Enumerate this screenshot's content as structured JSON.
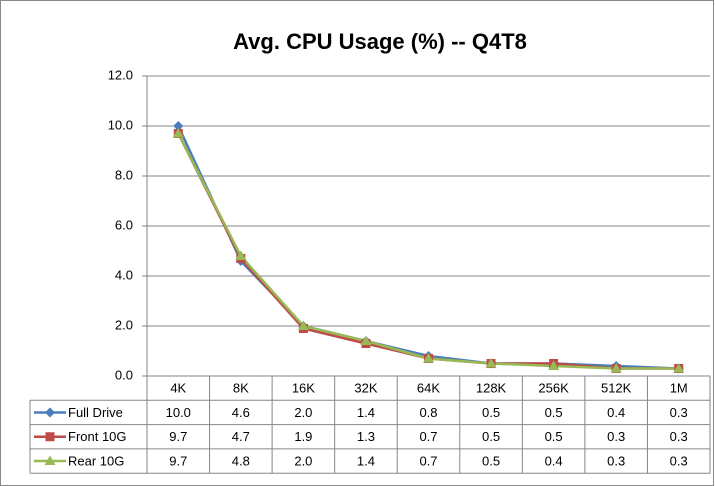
{
  "chart_data": {
    "type": "line",
    "title": "Avg. CPU Usage (%)    -- Q4T8",
    "categories": [
      "4K",
      "8K",
      "16K",
      "32K",
      "64K",
      "128K",
      "256K",
      "512K",
      "1M"
    ],
    "series": [
      {
        "name": "Full Drive",
        "color": "#4a7ebb",
        "marker": "diamond",
        "values": [
          10.0,
          4.6,
          2.0,
          1.4,
          0.8,
          0.5,
          0.5,
          0.4,
          0.3
        ],
        "value_labels": [
          "10.0",
          "4.6",
          "2.0",
          "1.4",
          "0.8",
          "0.5",
          "0.5",
          "0.4",
          "0.3"
        ]
      },
      {
        "name": "Front 10G",
        "color": "#be4b48",
        "marker": "square",
        "values": [
          9.7,
          4.7,
          1.9,
          1.3,
          0.7,
          0.5,
          0.5,
          0.3,
          0.3
        ],
        "value_labels": [
          "9.7",
          "4.7",
          "1.9",
          "1.3",
          "0.7",
          "0.5",
          "0.5",
          "0.3",
          "0.3"
        ]
      },
      {
        "name": "Rear 10G",
        "color": "#98b954",
        "marker": "triangle",
        "values": [
          9.7,
          4.8,
          2.0,
          1.4,
          0.7,
          0.5,
          0.4,
          0.3,
          0.3
        ],
        "value_labels": [
          "9.7",
          "4.8",
          "2.0",
          "1.4",
          "0.7",
          "0.5",
          "0.4",
          "0.3",
          "0.3"
        ]
      }
    ],
    "ylim": [
      0,
      12
    ],
    "yticks": [
      {
        "value": 0,
        "label": "0.0"
      },
      {
        "value": 2,
        "label": "2.0"
      },
      {
        "value": 4,
        "label": "4.0"
      },
      {
        "value": 6,
        "label": "6.0"
      },
      {
        "value": 8,
        "label": "8.0"
      },
      {
        "value": 10,
        "label": "10.0"
      },
      {
        "value": 12,
        "label": "12.0"
      }
    ],
    "grid": true
  }
}
